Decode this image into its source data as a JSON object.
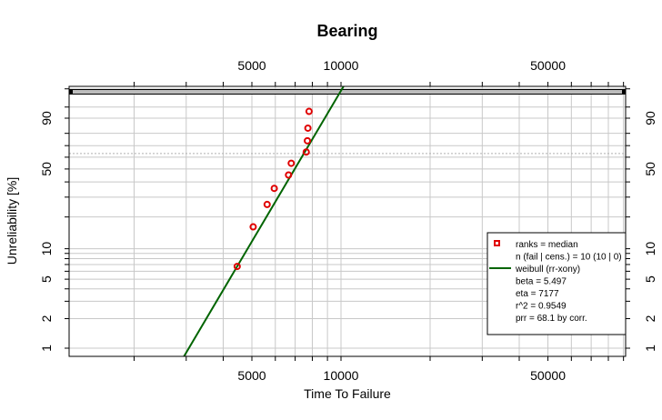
{
  "chart_data": {
    "type": "scatter",
    "title": "Bearing",
    "xlabel": "Time To Failure",
    "ylabel": "Unreliability [%]",
    "x_scale": "log",
    "y_scale": "weibull",
    "xlim": [
      1000,
      100000
    ],
    "ylim_percent": [
      0.8,
      99.99
    ],
    "x_ticks": [
      5000,
      10000,
      50000
    ],
    "y_ticks": [
      1,
      2,
      5,
      10,
      50,
      90
    ],
    "grid": true,
    "legend_position": "bottom-right",
    "series": [
      {
        "kind": "points",
        "x": [
          4460,
          5050,
          5630,
          5950,
          6650,
          6790,
          7630,
          7700,
          7730,
          7800
        ],
        "y_percent": [
          6.7,
          16.2,
          25.9,
          35.5,
          45.2,
          54.8,
          64.5,
          74.1,
          83.8,
          93.3
        ],
        "color": "#e00000"
      },
      {
        "kind": "line",
        "beta": 5.497,
        "eta": 7177,
        "color": "#006400"
      }
    ],
    "legend": [
      {
        "symbol": "point",
        "text": "ranks = median"
      },
      {
        "symbol": "none",
        "text": "n (fail | cens.) = 10 (10 | 0)"
      },
      {
        "symbol": "line",
        "text": "weibull (rr-xony)"
      },
      {
        "symbol": "none",
        "text": "beta = 5.497"
      },
      {
        "symbol": "none",
        "text": "eta = 7177"
      },
      {
        "symbol": "none",
        "text": "r^2 = 0.9549"
      },
      {
        "symbol": "none",
        "text": "prr = 68.1 by corr."
      }
    ]
  }
}
